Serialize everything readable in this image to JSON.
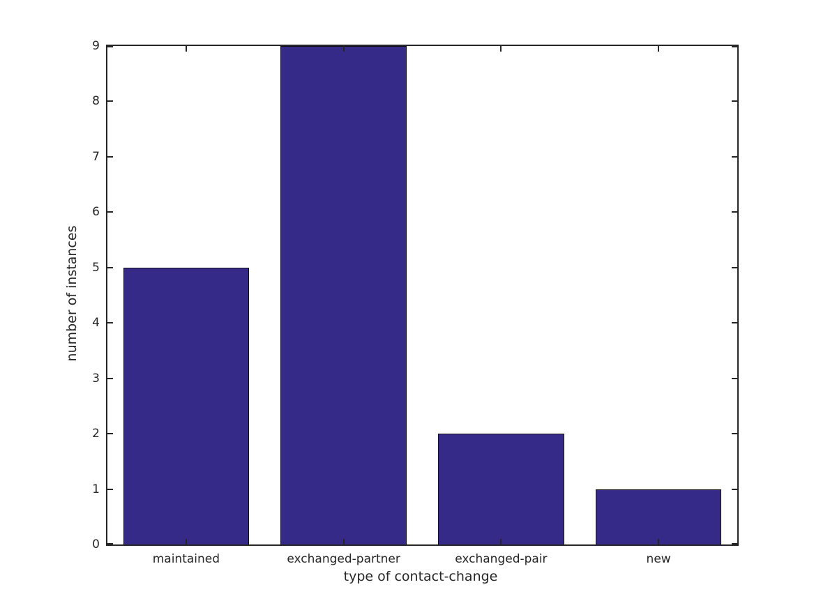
{
  "chart_data": {
    "type": "bar",
    "title": "",
    "xlabel": "type of contact-change",
    "ylabel": "number of instances",
    "categories": [
      "maintained",
      "exchanged-partner",
      "exchanged-pair",
      "new"
    ],
    "values": [
      5,
      9,
      2,
      1
    ],
    "ylim": [
      0,
      9
    ],
    "yticks": [
      0,
      1,
      2,
      3,
      4,
      5,
      6,
      7,
      8,
      9
    ],
    "bar_width_fraction": 0.8,
    "grid": false,
    "legend": null,
    "colors": {
      "bar_fill": "#352a87",
      "bar_edge": "#111111",
      "axis": "#262626",
      "text": "#262626",
      "background": "#ffffff"
    }
  }
}
